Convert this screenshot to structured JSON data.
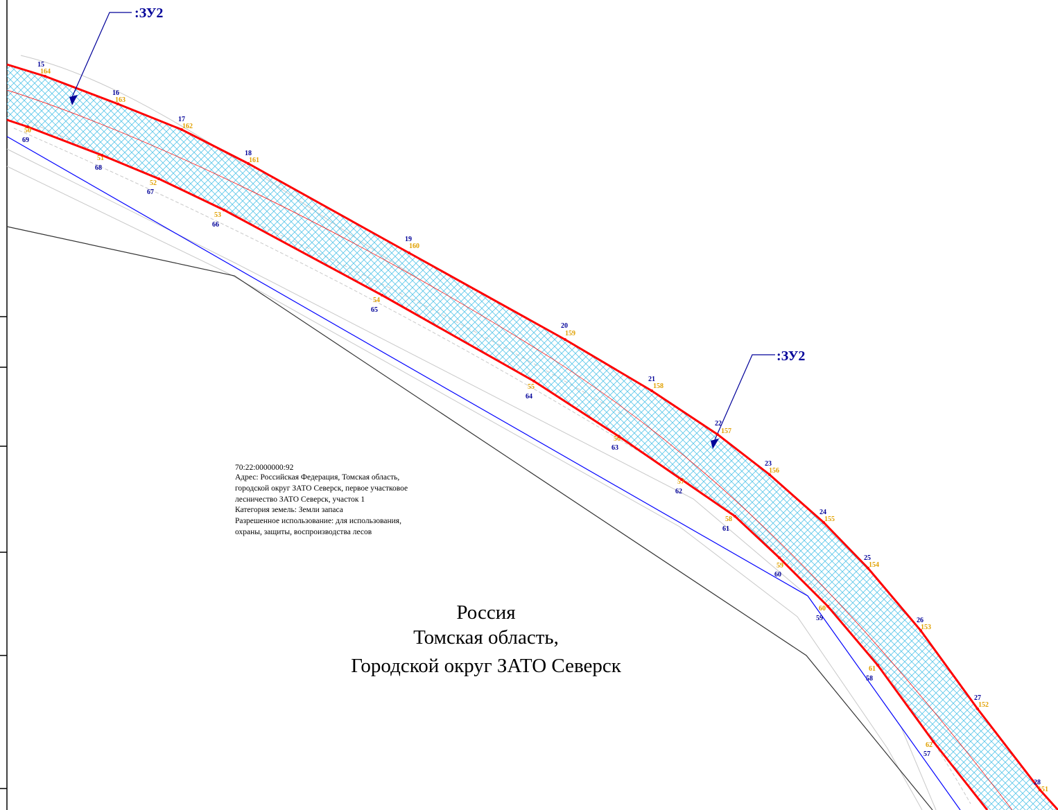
{
  "parcel_tag": ":ЗУ2",
  "parcel_info": {
    "cadastral_number": "70:22:0000000:92",
    "address_lines": [
      "Адрес: Российская Федерация, Томская область,",
      "городской округ ЗАТО Северск, первое участковое",
      "лесничество ЗАТО Северск, участок 1"
    ],
    "land_category": "Категория земель: Земли запаса",
    "permitted_use_lines": [
      "Разрешенное использование: для использования,",
      "охраны, защиты, воспроизводства лесов"
    ]
  },
  "region_label": {
    "country": "Россия",
    "oblast": "Томская область,",
    "district": "Городской округ ЗАТО Северск"
  },
  "outer_boundary_points": [
    {
      "n": "15",
      "m": "164"
    },
    {
      "n": "16",
      "m": "163"
    },
    {
      "n": "17",
      "m": "162"
    },
    {
      "n": "18",
      "m": "161"
    },
    {
      "n": "19",
      "m": "160"
    },
    {
      "n": "20",
      "m": "159"
    },
    {
      "n": "21",
      "m": "158"
    },
    {
      "n": "22",
      "m": "157"
    },
    {
      "n": "23",
      "m": "156"
    },
    {
      "n": "24",
      "m": "155"
    },
    {
      "n": "25",
      "m": "154"
    },
    {
      "n": "26",
      "m": "153"
    },
    {
      "n": "27",
      "m": "152"
    },
    {
      "n": "28",
      "m": "151"
    }
  ],
  "inner_boundary_points": [
    {
      "n": "69",
      "m": "50"
    },
    {
      "n": "68",
      "m": "51"
    },
    {
      "n": "67",
      "m": "52"
    },
    {
      "n": "66",
      "m": "53"
    },
    {
      "n": "65",
      "m": "54"
    },
    {
      "n": "64",
      "m": "55"
    },
    {
      "n": "63",
      "m": "56"
    },
    {
      "n": "62",
      "m": "57"
    },
    {
      "n": "61",
      "m": "58"
    },
    {
      "n": "60",
      "m": "59"
    },
    {
      "n": "59",
      "m": "60"
    },
    {
      "n": "58",
      "m": "61"
    },
    {
      "n": "57",
      "m": "62"
    }
  ],
  "colors": {
    "boundary": "#ff0000",
    "hatch": "#5ec8ea",
    "number_blue": "#000099",
    "number_orange": "#e0a000",
    "blue_line": "#0000ff",
    "dark_line": "#333333",
    "grey_line": "#c8c8c8"
  }
}
